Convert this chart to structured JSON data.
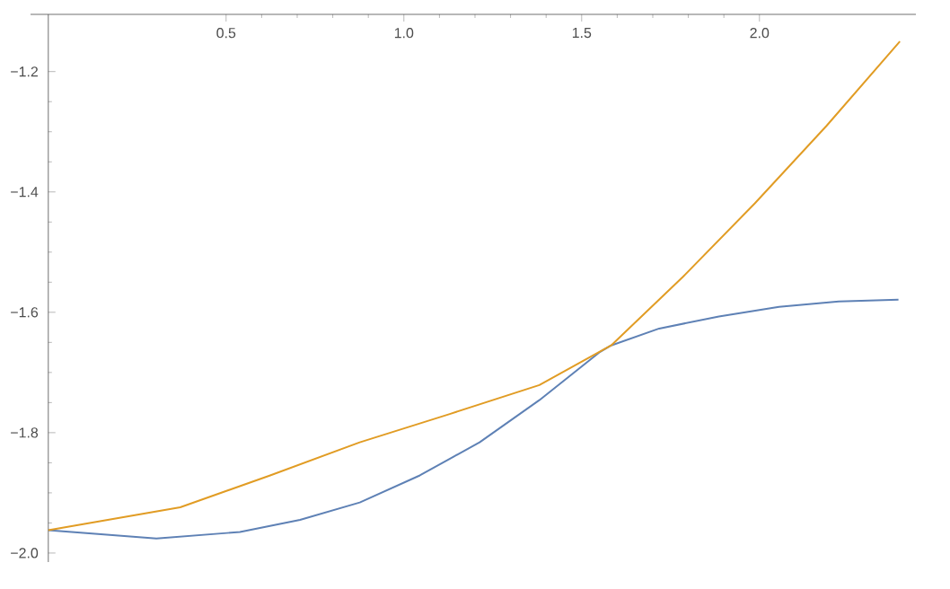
{
  "chart_data": {
    "type": "line",
    "xlim": [
      -0.05,
      2.44
    ],
    "ylim": [
      -2.015,
      -1.105
    ],
    "xticks": [
      0.5,
      {
        "value": 1,
        "label": "1.0"
      },
      1.5,
      {
        "value": 2,
        "label": "2.0"
      }
    ],
    "yticks": [
      {
        "value": -2,
        "label": "−2.0"
      },
      {
        "value": -1.8,
        "label": "−1.8"
      },
      {
        "value": -1.6,
        "label": "−1.6"
      },
      {
        "value": -1.4,
        "label": "−1.4"
      },
      {
        "value": -1.2,
        "label": "−1.2"
      }
    ],
    "series": [
      {
        "color": "#5e81b5",
        "x": [
          0.0,
          0.304,
          0.539,
          0.708,
          0.876,
          1.045,
          1.213,
          1.381,
          1.549,
          1.583,
          1.718,
          1.886,
          2.055,
          2.223,
          2.391
        ],
        "values": [
          -1.962,
          -1.976,
          -1.965,
          -1.945,
          -1.916,
          -1.871,
          -1.816,
          -1.746,
          -1.667,
          -1.655,
          -1.627,
          -1.607,
          -1.591,
          -1.582,
          -1.579
        ]
      },
      {
        "color": "#e19c24",
        "x": [
          0.0,
          0.371,
          0.624,
          0.876,
          1.129,
          1.381,
          1.583,
          1.785,
          1.987,
          2.189,
          2.395
        ],
        "values": [
          -1.962,
          -1.924,
          -1.871,
          -1.816,
          -1.769,
          -1.721,
          -1.655,
          -1.541,
          -1.419,
          -1.29,
          -1.15
        ]
      }
    ]
  }
}
